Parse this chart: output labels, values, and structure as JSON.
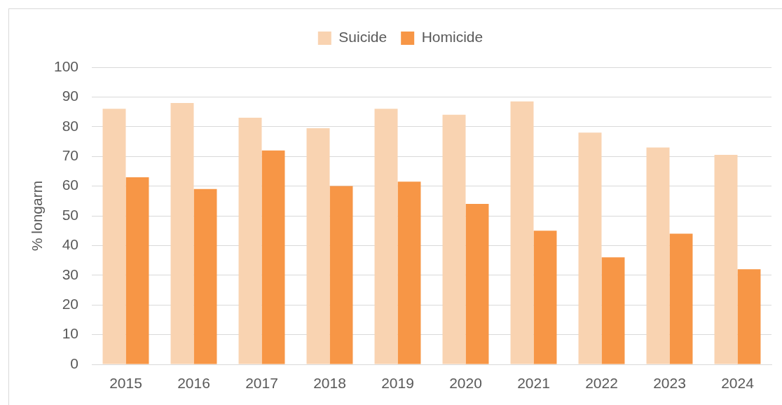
{
  "chart_data": {
    "type": "bar",
    "ylabel": "% longarm",
    "categories": [
      "2015",
      "2016",
      "2017",
      "2018",
      "2019",
      "2020",
      "2021",
      "2022",
      "2023",
      "2024"
    ],
    "series": [
      {
        "name": "Suicide",
        "color": "#f9d3b1",
        "values": [
          86,
          88,
          83,
          79.5,
          86,
          84,
          88.5,
          78,
          73,
          70.5
        ]
      },
      {
        "name": "Homicide",
        "color": "#f79646",
        "values": [
          63,
          59,
          72,
          60,
          61.5,
          54,
          45,
          36,
          44,
          32
        ]
      }
    ],
    "ylim": [
      0,
      100
    ],
    "yticks": [
      0,
      10,
      20,
      30,
      40,
      50,
      60,
      70,
      80,
      90,
      100
    ],
    "grid": "y",
    "legend": "top"
  }
}
